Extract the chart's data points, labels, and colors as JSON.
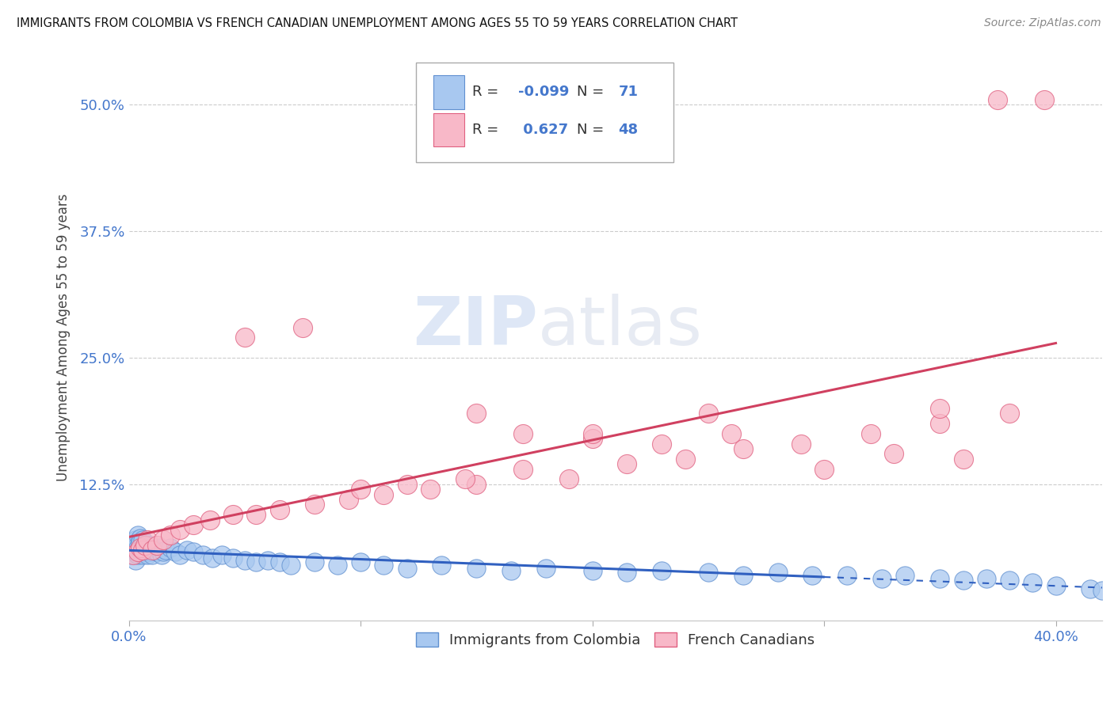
{
  "title": "IMMIGRANTS FROM COLOMBIA VS FRENCH CANADIAN UNEMPLOYMENT AMONG AGES 55 TO 59 YEARS CORRELATION CHART",
  "source": "Source: ZipAtlas.com",
  "ylabel": "Unemployment Among Ages 55 to 59 years",
  "xlim": [
    0.0,
    0.42
  ],
  "ylim": [
    -0.01,
    0.55
  ],
  "xticks": [
    0.0,
    0.1,
    0.2,
    0.3,
    0.4
  ],
  "yticks": [
    0.0,
    0.125,
    0.25,
    0.375,
    0.5
  ],
  "ytick_labels": [
    "",
    "12.5%",
    "25.0%",
    "37.5%",
    "50.0%"
  ],
  "series1_color": "#a8c8f0",
  "series1_edge": "#6090d0",
  "series2_color": "#f8b8c8",
  "series2_edge": "#e06080",
  "line1_color": "#3060c0",
  "line2_color": "#d04060",
  "R1": -0.099,
  "N1": 71,
  "R2": 0.627,
  "N2": 48,
  "legend_label1": "Immigrants from Colombia",
  "legend_label2": "French Canadians",
  "watermark_zip": "ZIP",
  "watermark_atlas": "atlas",
  "blue_x": [
    0.001,
    0.002,
    0.002,
    0.003,
    0.003,
    0.003,
    0.004,
    0.004,
    0.004,
    0.005,
    0.005,
    0.005,
    0.005,
    0.006,
    0.006,
    0.006,
    0.007,
    0.007,
    0.008,
    0.008,
    0.009,
    0.009,
    0.01,
    0.01,
    0.011,
    0.012,
    0.013,
    0.014,
    0.015,
    0.016,
    0.018,
    0.02,
    0.022,
    0.025,
    0.028,
    0.032,
    0.036,
    0.04,
    0.045,
    0.05,
    0.055,
    0.06,
    0.065,
    0.07,
    0.08,
    0.09,
    0.1,
    0.11,
    0.12,
    0.135,
    0.15,
    0.165,
    0.18,
    0.2,
    0.215,
    0.23,
    0.25,
    0.265,
    0.28,
    0.295,
    0.31,
    0.325,
    0.335,
    0.35,
    0.36,
    0.37,
    0.38,
    0.39,
    0.4,
    0.415,
    0.42
  ],
  "blue_y": [
    0.055,
    0.058,
    0.065,
    0.05,
    0.062,
    0.07,
    0.055,
    0.062,
    0.075,
    0.058,
    0.065,
    0.072,
    0.068,
    0.055,
    0.062,
    0.07,
    0.058,
    0.065,
    0.055,
    0.06,
    0.058,
    0.065,
    0.055,
    0.062,
    0.06,
    0.058,
    0.062,
    0.055,
    0.058,
    0.06,
    0.062,
    0.058,
    0.055,
    0.06,
    0.058,
    0.055,
    0.052,
    0.055,
    0.052,
    0.05,
    0.048,
    0.05,
    0.048,
    0.045,
    0.048,
    0.045,
    0.048,
    0.045,
    0.042,
    0.045,
    0.042,
    0.04,
    0.042,
    0.04,
    0.038,
    0.04,
    0.038,
    0.035,
    0.038,
    0.035,
    0.035,
    0.032,
    0.035,
    0.032,
    0.03,
    0.032,
    0.03,
    0.028,
    0.025,
    0.022,
    0.02
  ],
  "pink_x": [
    0.002,
    0.004,
    0.005,
    0.006,
    0.007,
    0.008,
    0.01,
    0.012,
    0.015,
    0.018,
    0.022,
    0.028,
    0.035,
    0.045,
    0.055,
    0.065,
    0.08,
    0.095,
    0.11,
    0.13,
    0.15,
    0.17,
    0.19,
    0.215,
    0.24,
    0.265,
    0.29,
    0.32,
    0.35,
    0.38,
    0.05,
    0.075,
    0.1,
    0.12,
    0.145,
    0.17,
    0.2,
    0.23,
    0.26,
    0.3,
    0.33,
    0.36,
    0.15,
    0.2,
    0.25,
    0.35,
    0.375,
    0.395
  ],
  "pink_y": [
    0.055,
    0.058,
    0.062,
    0.06,
    0.065,
    0.07,
    0.06,
    0.065,
    0.07,
    0.075,
    0.08,
    0.085,
    0.09,
    0.095,
    0.095,
    0.1,
    0.105,
    0.11,
    0.115,
    0.12,
    0.125,
    0.14,
    0.13,
    0.145,
    0.15,
    0.16,
    0.165,
    0.175,
    0.185,
    0.195,
    0.27,
    0.28,
    0.12,
    0.125,
    0.13,
    0.175,
    0.17,
    0.165,
    0.175,
    0.14,
    0.155,
    0.15,
    0.195,
    0.175,
    0.195,
    0.2,
    0.505,
    0.505
  ]
}
